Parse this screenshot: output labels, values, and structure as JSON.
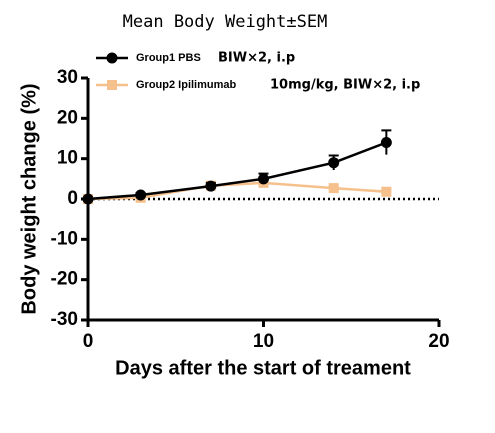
{
  "chart_data": {
    "type": "line",
    "title": "Mean Body Weight±SEM",
    "x_label": "Days after the start of treament",
    "y_label": "Body weight change (%)",
    "x": [
      0,
      3,
      7,
      10,
      14,
      17
    ],
    "series": [
      {
        "name": "Group1 PBS",
        "annotation": "BIW×2, i.p",
        "color": "#000000",
        "marker": "circle",
        "values": [
          0,
          1,
          3.2,
          5,
          9,
          14
        ],
        "errors": [
          0,
          0.5,
          0.8,
          1.3,
          1.8,
          3
        ]
      },
      {
        "name": "Group2 Ipilimumab",
        "annotation": "10mg/kg, BIW×2, i.p",
        "color": "#f5c08c",
        "marker": "square",
        "values": [
          0,
          0.3,
          3.3,
          4,
          2.7,
          1.8
        ],
        "errors": [
          0,
          0.3,
          0.5,
          0.6,
          0.5,
          0.6
        ]
      }
    ],
    "xlim": [
      0,
      20
    ],
    "xticks": [
      0,
      10,
      20
    ],
    "ylim": [
      -30,
      30
    ],
    "yticks": [
      -30,
      -20,
      -10,
      0,
      10,
      20,
      30
    ],
    "zero_line": true,
    "grid": false
  }
}
